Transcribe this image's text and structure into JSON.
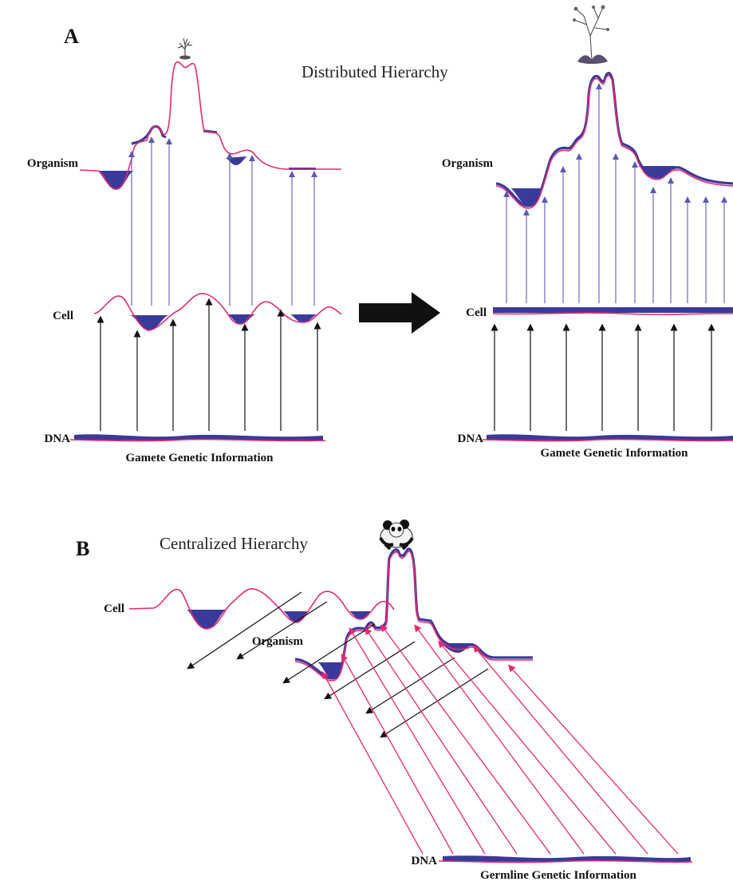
{
  "panel_a": {
    "letter": "A",
    "title": "Distributed Hierarchy",
    "left": {
      "organism_label": "Organism",
      "cell_label": "Cell",
      "dna_label": "DNA",
      "caption": "Gamete Genetic Information"
    },
    "right": {
      "organism_label": "Organism",
      "cell_label": "Cell",
      "dna_label": "DNA",
      "caption": "Gamete Genetic Information"
    }
  },
  "panel_b": {
    "letter": "B",
    "title": "Centralized Hierarchy",
    "organism_label": "Organism",
    "cell_label": "Cell",
    "dna_label": "DNA",
    "caption": "Germline Genetic Information"
  },
  "icons": {
    "plant_small": "plant-sprout-icon",
    "plant_large": "flowering-plant-icon",
    "panda": "panda-icon",
    "transition_arrow": "big-right-arrow-icon"
  },
  "colors": {
    "landscape_line": "#e8286e",
    "well_fill": "#3a3a9a",
    "upward_arrows_distributed": "#6a6ac0",
    "dna_arrows": "#111111",
    "germline_arrows": "#e8286e"
  }
}
